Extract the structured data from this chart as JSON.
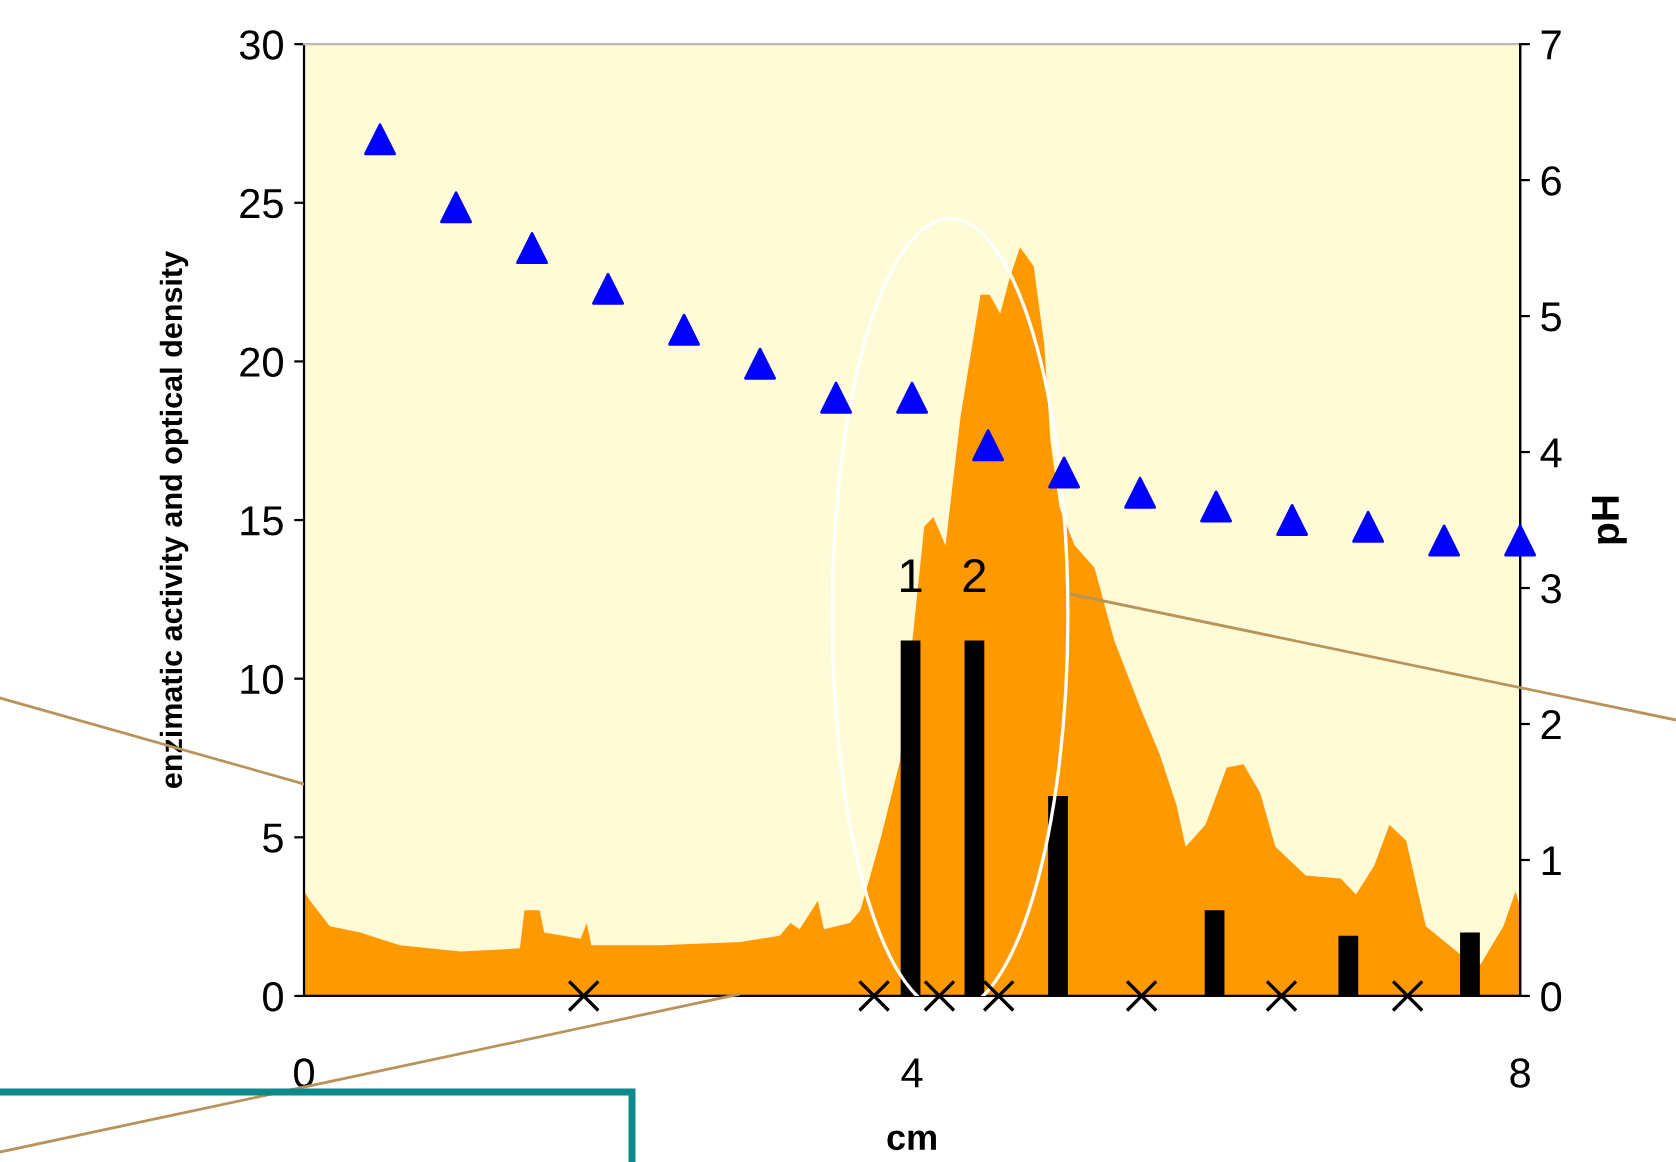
{
  "chart_data": {
    "type": "area",
    "xlabel": "cm",
    "ylabel": "enzimatic activity and optical density",
    "y2label": "pH",
    "xlim": [
      0,
      8
    ],
    "xticks": [
      0,
      4,
      8
    ],
    "ylim": [
      0,
      30
    ],
    "yticks": [
      0,
      5,
      10,
      15,
      20,
      25,
      30
    ],
    "y2lim": [
      0,
      7
    ],
    "y2ticks": [
      0,
      1,
      2,
      3,
      4,
      5,
      6,
      7
    ],
    "grid": false,
    "series": [
      {
        "color": "#ff9900",
        "x": [
          0,
          0.04,
          0.17,
          0.37,
          0.63,
          1.03,
          1.42,
          1.45,
          1.55,
          1.58,
          1.82,
          1.86,
          1.89,
          2.34,
          2.87,
          3.13,
          3.2,
          3.26,
          3.38,
          3.42,
          3.59,
          3.66,
          3.72,
          3.79,
          3.92,
          4.08,
          4.14,
          4.22,
          4.32,
          4.45,
          4.51,
          4.58,
          4.64,
          4.71,
          4.8,
          4.87,
          4.91,
          4.97,
          5.07,
          5.2,
          5.33,
          5.5,
          5.63,
          5.74,
          5.8,
          5.93,
          6.07,
          6.18,
          6.29,
          6.39,
          6.59,
          6.82,
          6.92,
          7.04,
          7.14,
          7.25,
          7.38,
          7.61,
          7.74,
          7.89,
          7.97,
          8.0
        ],
        "values": [
          3.3,
          3.0,
          2.2,
          2.0,
          1.6,
          1.4,
          1.5,
          2.7,
          2.7,
          2.0,
          1.8,
          2.3,
          1.6,
          1.6,
          1.7,
          1.9,
          2.3,
          2.1,
          3.0,
          2.1,
          2.3,
          2.7,
          3.7,
          4.9,
          7.4,
          14.8,
          15.1,
          14.2,
          18.3,
          22.1,
          22.1,
          21.5,
          22.6,
          23.6,
          23.0,
          20.5,
          17.5,
          15.4,
          14.2,
          13.5,
          11.2,
          9.1,
          7.6,
          6.0,
          4.7,
          5.4,
          7.2,
          7.3,
          6.4,
          4.7,
          3.8,
          3.7,
          3.2,
          4.1,
          5.4,
          4.9,
          2.2,
          1.3,
          1.0,
          2.2,
          3.3,
          2.8
        ]
      },
      {
        "type": "bar",
        "color": "#000000",
        "x": [
          3.99,
          4.41,
          4.96,
          5.99,
          6.87,
          7.67
        ],
        "values": [
          11.2,
          11.2,
          6.3,
          2.7,
          1.9,
          2.0
        ]
      },
      {
        "type": "scatter",
        "color": "#000000",
        "marker": "cross",
        "x": [
          1.84,
          3.75,
          4.18,
          4.57,
          5.51,
          6.43,
          7.26
        ],
        "values": [
          0,
          0,
          0,
          0,
          0,
          0,
          0
        ]
      },
      {
        "type": "scatter",
        "color": "#0000ff",
        "marker": "triangle",
        "axis": "y2",
        "x": [
          0.5,
          1.0,
          1.5,
          2.0,
          2.5,
          3.0,
          3.5,
          4.0,
          4.5,
          5.0,
          5.5,
          6.0,
          6.5,
          7.0,
          7.5,
          8.0
        ],
        "values": [
          6.3,
          5.8,
          5.5,
          5.2,
          4.9,
          4.65,
          4.4,
          4.4,
          4.05,
          3.85,
          3.7,
          3.6,
          3.5,
          3.45,
          3.35,
          3.35
        ]
      }
    ],
    "annotations": [
      "1",
      "2"
    ]
  }
}
